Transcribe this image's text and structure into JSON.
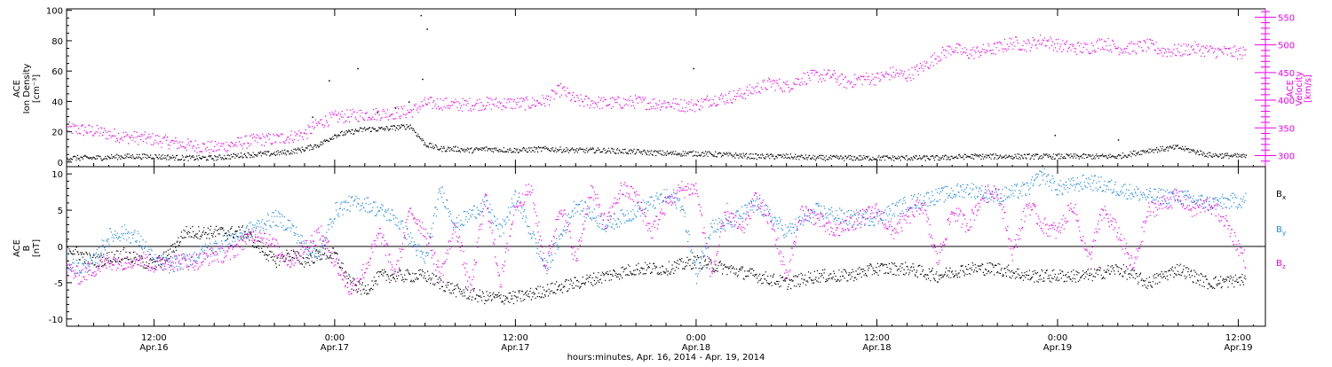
{
  "colors": {
    "black": "#000000",
    "magenta": "#ee00ee",
    "blue": "#1e88e5"
  },
  "xlabel": "hours:minutes, Apr. 16, 2014 - Apr. 19, 2014",
  "x_ticks": [
    {
      "hour": 12,
      "time": "12:00",
      "date": "Apr.16"
    },
    {
      "hour": 24,
      "time": "0:00",
      "date": "Apr.17"
    },
    {
      "hour": 36,
      "time": "12:00",
      "date": "Apr.17"
    },
    {
      "hour": 48,
      "time": "0:00",
      "date": "Apr.18"
    },
    {
      "hour": 60,
      "time": "12:00",
      "date": "Apr.18"
    },
    {
      "hour": 72,
      "time": "0:00",
      "date": "Apr.19"
    },
    {
      "hour": 84,
      "time": "12:00",
      "date": "Apr.19"
    }
  ],
  "chart_data": [
    {
      "type": "scatter",
      "name": "top-panel",
      "xlim": [
        6.2,
        85.8
      ],
      "ylabel_left": [
        "ACE",
        "Ion Density",
        "[cm⁻³]"
      ],
      "ylabel_right": [
        "ACE",
        "Velocity",
        "[km/s]"
      ],
      "ylim_left": [
        -3,
        101
      ],
      "ylim_right": [
        280,
        565
      ],
      "yticks_left": [
        0,
        20,
        40,
        60,
        80,
        100
      ],
      "yticks_right": [
        300,
        350,
        400,
        450,
        500,
        550
      ],
      "series": [
        {
          "axis": "left",
          "color": "black",
          "x": [
            6.2,
            8,
            10,
            12,
            14,
            16,
            18,
            20,
            21,
            22,
            23,
            24,
            25,
            26,
            27,
            28,
            29,
            30,
            31,
            32,
            33,
            34,
            36,
            38,
            40,
            42,
            44,
            46,
            48,
            50,
            52,
            54,
            56,
            58,
            60,
            62,
            64,
            66,
            68,
            70,
            72,
            74,
            76,
            78,
            80,
            82,
            84.5
          ],
          "y": [
            3,
            3,
            4,
            4,
            3,
            3,
            5,
            6,
            7,
            9,
            12,
            18,
            20,
            22,
            22,
            23,
            24,
            12,
            9,
            9,
            8,
            9,
            8,
            9,
            8,
            8,
            7,
            6,
            6,
            5,
            4,
            4,
            3,
            3,
            3,
            3,
            3,
            4,
            4,
            4,
            4,
            4,
            4,
            8,
            10,
            5,
            4
          ]
        },
        {
          "axis": "left",
          "color": "black",
          "type": "outliers",
          "x": [
            22.5,
            23.6,
            25.5,
            26.8,
            28.0,
            28.9,
            29.8,
            29.7,
            30.1,
            47.8,
            71.8,
            76.0
          ],
          "y": [
            30,
            54,
            62,
            33,
            36,
            40,
            55,
            97,
            88,
            62,
            18,
            15
          ]
        },
        {
          "axis": "right",
          "color": "magenta",
          "x": [
            6.2,
            8,
            10,
            12,
            14,
            16,
            18,
            19,
            20,
            21,
            22,
            23,
            24,
            26,
            28,
            29,
            30,
            31,
            32,
            34,
            36,
            37,
            38,
            39,
            40,
            42,
            44,
            45,
            46,
            47,
            48,
            49,
            50,
            51,
            52,
            53,
            54,
            55,
            56,
            57,
            58,
            59,
            60,
            61,
            62,
            63,
            64,
            65,
            66,
            67,
            68,
            69,
            70,
            71,
            72,
            73,
            74,
            75,
            76,
            77,
            78,
            79,
            80,
            81,
            82,
            83,
            84.5
          ],
          "y": [
            350,
            345,
            335,
            330,
            320,
            315,
            325,
            330,
            330,
            335,
            340,
            360,
            370,
            375,
            378,
            380,
            395,
            395,
            392,
            395,
            395,
            395,
            400,
            420,
            400,
            395,
            398,
            395,
            395,
            392,
            392,
            402,
            405,
            412,
            422,
            432,
            425,
            440,
            445,
            445,
            432,
            440,
            440,
            450,
            445,
            460,
            480,
            495,
            485,
            490,
            495,
            505,
            500,
            510,
            500,
            495,
            495,
            505,
            495,
            495,
            500,
            490,
            490,
            495,
            490,
            488,
            486
          ]
        }
      ]
    },
    {
      "type": "scatter",
      "name": "bottom-panel",
      "xlim": [
        6.2,
        85.8
      ],
      "ylabel_left": [
        "ACE",
        "B",
        "[nT]"
      ],
      "ylim": [
        -11,
        11
      ],
      "yticks": [
        -10,
        -5,
        0,
        5,
        10
      ],
      "zero_line": true,
      "legend": [
        {
          "label": "B",
          "sub": "x",
          "color": "black"
        },
        {
          "label": "B",
          "sub": "y",
          "color": "blue"
        },
        {
          "label": "B",
          "sub": "z",
          "color": "magenta"
        }
      ],
      "series": [
        {
          "name": "Bx",
          "color": "black",
          "x": [
            6.2,
            7,
            8,
            9,
            10,
            11,
            12,
            13,
            14,
            15,
            16,
            17,
            18,
            19,
            20,
            21,
            22,
            23,
            24,
            25,
            26,
            27,
            28,
            30,
            32,
            34,
            36,
            38,
            40,
            42,
            44,
            46,
            48,
            50,
            52,
            54,
            56,
            58,
            60,
            62,
            64,
            66,
            68,
            70,
            72,
            74,
            76,
            78,
            80,
            82,
            84.5
          ],
          "y": [
            0,
            -1,
            -2,
            -1.5,
            -1,
            -2,
            -2.5,
            -1,
            2,
            2,
            2,
            2,
            2,
            0,
            -2,
            -1,
            -2,
            -1,
            -1,
            -5,
            -6,
            -4,
            -4,
            -4,
            -6,
            -7,
            -7,
            -6,
            -5,
            -4,
            -3,
            -3,
            -2,
            -3,
            -4,
            -5,
            -4,
            -4,
            -3,
            -3,
            -4,
            -3,
            -3,
            -4,
            -4,
            -4,
            -3,
            -5,
            -3,
            -5,
            -4.5
          ]
        },
        {
          "name": "By",
          "color": "blue",
          "x": [
            6.2,
            7,
            8,
            9,
            10,
            11,
            12,
            13,
            14,
            15,
            16,
            17,
            18,
            19,
            20,
            21,
            22,
            23,
            24,
            25,
            26,
            27,
            28,
            30,
            31,
            32,
            34,
            35,
            36,
            38,
            40,
            42,
            44,
            46,
            47,
            48,
            49,
            50,
            52,
            54,
            56,
            58,
            60,
            62,
            64,
            66,
            68,
            70,
            71,
            72,
            74,
            76,
            78,
            80,
            82,
            84.5
          ],
          "y": [
            -2,
            -3,
            -2,
            1.5,
            2,
            1,
            -2,
            -2.5,
            -2,
            -1,
            0,
            1,
            2,
            3,
            4,
            3,
            0,
            -1,
            5,
            6,
            6,
            5,
            4,
            -2,
            8,
            3,
            6,
            2,
            7,
            -3,
            6,
            3,
            5,
            7,
            6,
            -4,
            3,
            3,
            6,
            2,
            5,
            4,
            4,
            6,
            7,
            8,
            7,
            8,
            10,
            8,
            9,
            8,
            7,
            7,
            6,
            6.5
          ]
        },
        {
          "name": "Bz",
          "color": "magenta",
          "x": [
            6.2,
            7,
            8,
            9,
            10,
            11,
            12,
            13,
            14,
            15,
            16,
            17,
            18,
            19,
            20,
            21,
            22,
            23,
            24,
            25,
            26,
            27,
            28,
            29,
            30,
            31,
            32,
            33,
            34,
            35,
            36,
            37,
            38,
            39,
            40,
            41,
            42,
            43,
            44,
            45,
            46,
            47,
            48,
            49,
            50,
            51,
            52,
            53,
            54,
            55,
            56,
            57,
            58,
            59,
            60,
            61,
            62,
            63,
            64,
            65,
            66,
            67,
            68,
            69,
            70,
            71,
            72,
            73,
            74,
            75,
            76,
            77,
            78,
            79,
            80,
            81,
            82,
            83,
            84.5
          ],
          "y": [
            -3,
            -4,
            -3,
            -2,
            -2,
            -1.5,
            -2.5,
            -2,
            -2,
            -2,
            -1,
            -1,
            1,
            2,
            0,
            -2,
            0,
            2,
            -2,
            -6,
            -3,
            2,
            -4,
            5,
            2,
            -4,
            3,
            -6,
            7,
            -5,
            6,
            8,
            -3,
            6,
            -2,
            8,
            3,
            8,
            7,
            2,
            6,
            8,
            8,
            -4,
            5,
            2,
            7,
            3,
            -4,
            5,
            4,
            2,
            3,
            4,
            5,
            2,
            4,
            6,
            -2,
            5,
            3,
            7,
            8,
            -1,
            6,
            3,
            2,
            6,
            -2,
            5,
            2,
            -3,
            5,
            6,
            7,
            5,
            6,
            4,
            -2
          ]
        }
      ]
    }
  ]
}
